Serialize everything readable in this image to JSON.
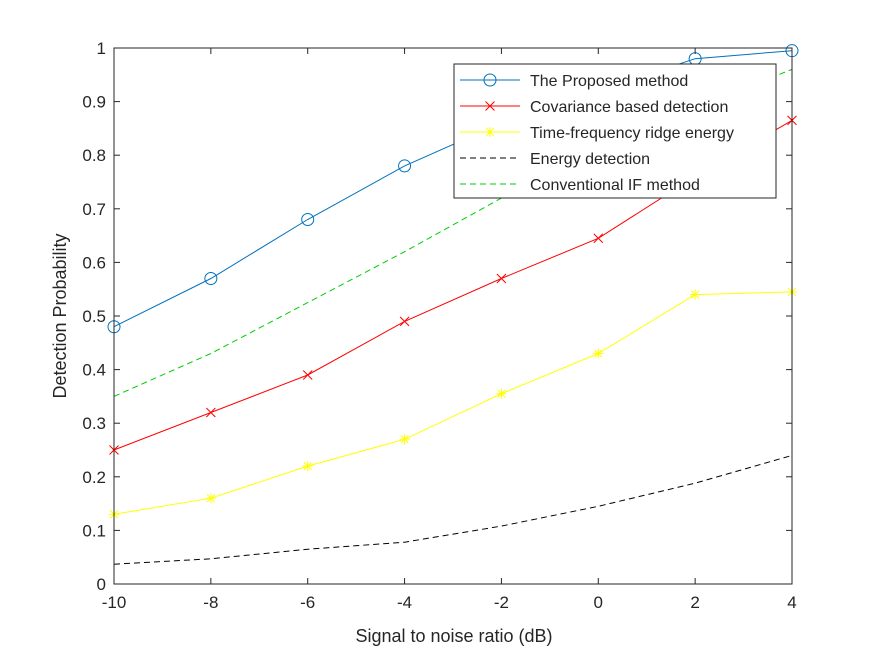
{
  "chart_data": {
    "type": "line",
    "title": "",
    "xlabel": "Signal to noise ratio (dB)",
    "ylabel": "Detection Probability",
    "xlim": [
      -10,
      4
    ],
    "ylim": [
      0,
      1
    ],
    "xticks": [
      -10,
      -8,
      -6,
      -4,
      -2,
      0,
      2,
      4
    ],
    "yticks": [
      0,
      0.1,
      0.2,
      0.3,
      0.4,
      0.5,
      0.6,
      0.7,
      0.8,
      0.9,
      1
    ],
    "grid": false,
    "legend_position": "top-right",
    "x": [
      -10,
      -8,
      -6,
      -4,
      -2,
      0,
      2,
      4
    ],
    "series": [
      {
        "name": "The Proposed method",
        "values": [
          0.48,
          0.57,
          0.68,
          0.78,
          0.86,
          0.92,
          0.98,
          0.995
        ],
        "color": "#0072BD",
        "dash": "solid",
        "marker": "circle"
      },
      {
        "name": "Covariance based detection",
        "values": [
          0.25,
          0.32,
          0.39,
          0.49,
          0.57,
          0.645,
          0.76,
          0.865
        ],
        "color": "#FF0000",
        "dash": "solid",
        "marker": "x"
      },
      {
        "name": "Time-frequency ridge energy",
        "values": [
          0.13,
          0.16,
          0.22,
          0.27,
          0.355,
          0.43,
          0.54,
          0.545
        ],
        "color": "#FFFF00",
        "dash": "solid",
        "marker": "star"
      },
      {
        "name": "Energy detection",
        "values": [
          0.037,
          0.047,
          0.065,
          0.078,
          0.108,
          0.145,
          0.188,
          0.24
        ],
        "color": "#000000",
        "dash": "dashed",
        "marker": "none"
      },
      {
        "name": "Conventional IF method",
        "values": [
          0.35,
          0.43,
          0.525,
          0.62,
          0.72,
          0.81,
          0.89,
          0.96
        ],
        "color": "#00CC00",
        "dash": "dashed",
        "marker": "none"
      }
    ]
  }
}
